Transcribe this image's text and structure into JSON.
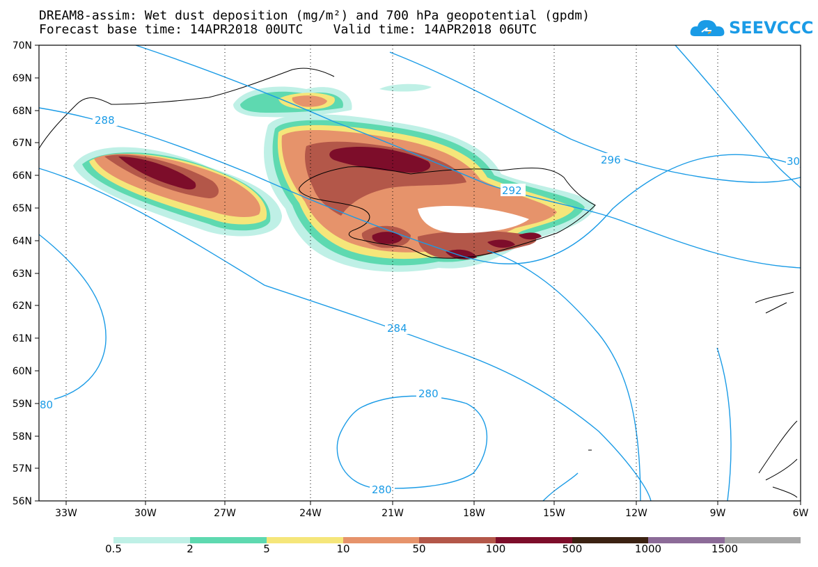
{
  "title": {
    "line1": "DREAM8-assim: Wet dust deposition (mg/m²) and 700 hPa geopotential (gpdm)",
    "line2": "Forecast base time: 14APR2018 00UTC    Valid time: 14APR2018 06UTC"
  },
  "logo": {
    "text": "SEEVCCC",
    "icon": "cloud-icon",
    "color": "#1a9be6"
  },
  "map": {
    "lat_labels": [
      "70N",
      "69N",
      "68N",
      "67N",
      "66N",
      "65N",
      "64N",
      "63N",
      "62N",
      "61N",
      "60N",
      "59N",
      "58N",
      "57N",
      "56N"
    ],
    "lon_labels": [
      "33W",
      "30W",
      "27W",
      "24W",
      "21W",
      "18W",
      "15W",
      "12W",
      "9W",
      "6W"
    ],
    "contour_labels": [
      "288",
      "296",
      "30",
      "292",
      "284",
      "280",
      "280",
      "80"
    ],
    "contour_color": "#1a9be6"
  },
  "legend": {
    "colors": [
      "#bff0e6",
      "#5ed9b0",
      "#f5e67a",
      "#e6936b",
      "#b35749",
      "#7d0d2a",
      "#3b2212",
      "#8c6b98",
      "#a8a8a8"
    ],
    "labels": [
      "0.5",
      "2",
      "5",
      "10",
      "50",
      "100",
      "500",
      "1000",
      "1500"
    ]
  }
}
